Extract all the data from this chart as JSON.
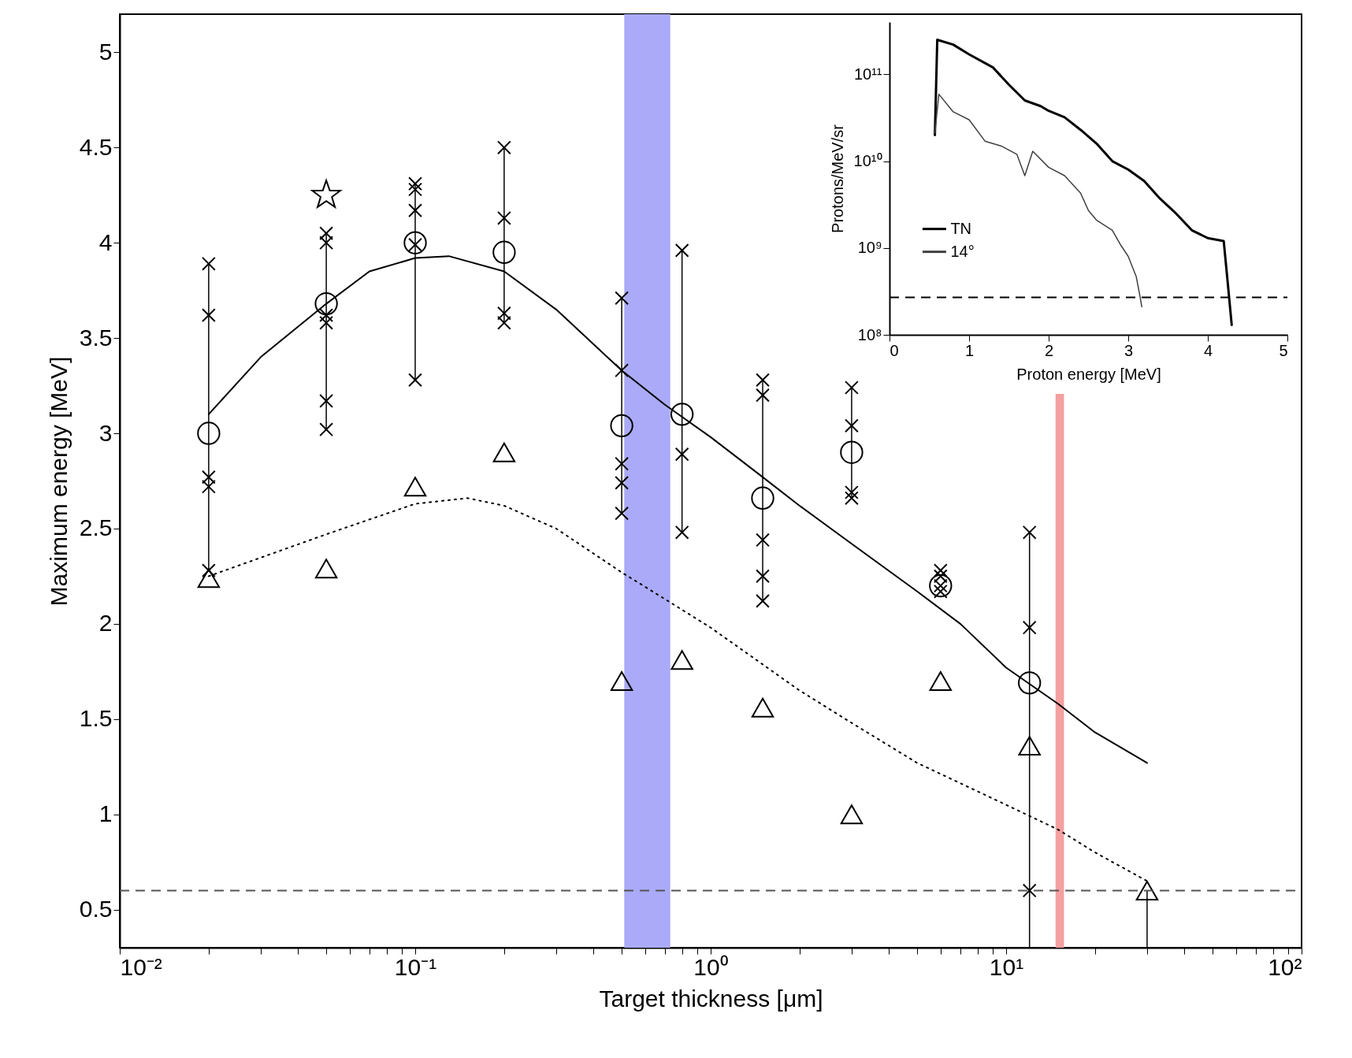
{
  "chart_data": [
    {
      "type": "scatter",
      "xlabel": "Target thickness [μm]",
      "ylabel": "Maximum energy [MeV]",
      "log": "x",
      "grid": false,
      "legend": false,
      "xlim": [
        0.01,
        100
      ],
      "ylim": [
        0.3,
        5.2
      ],
      "xticks": [
        {
          "value": 0.01,
          "label": "10⁻²"
        },
        {
          "value": 0.02,
          "label": null
        },
        {
          "value": 0.03,
          "label": null
        },
        {
          "value": 0.04,
          "label": null
        },
        {
          "value": 0.05,
          "label": null
        },
        {
          "value": 0.06,
          "label": null
        },
        {
          "value": 0.07,
          "label": null
        },
        {
          "value": 0.08,
          "label": null
        },
        {
          "value": 0.09,
          "label": null
        },
        {
          "value": 0.1,
          "label": "10⁻¹"
        },
        {
          "value": 0.2,
          "label": null
        },
        {
          "value": 0.3,
          "label": null
        },
        {
          "value": 0.4,
          "label": null
        },
        {
          "value": 0.5,
          "label": null
        },
        {
          "value": 0.6,
          "label": null
        },
        {
          "value": 0.7,
          "label": null
        },
        {
          "value": 0.8,
          "label": null
        },
        {
          "value": 0.9,
          "label": null
        },
        {
          "value": 1,
          "label": "10⁰"
        },
        {
          "value": 2,
          "label": null
        },
        {
          "value": 3,
          "label": null
        },
        {
          "value": 4,
          "label": null
        },
        {
          "value": 5,
          "label": null
        },
        {
          "value": 6,
          "label": null
        },
        {
          "value": 7,
          "label": null
        },
        {
          "value": 8,
          "label": null
        },
        {
          "value": 9,
          "label": null
        },
        {
          "value": 10,
          "label": "10¹"
        },
        {
          "value": 20,
          "label": null
        },
        {
          "value": 30,
          "label": null
        },
        {
          "value": 40,
          "label": null
        },
        {
          "value": 50,
          "label": null
        },
        {
          "value": 60,
          "label": null
        },
        {
          "value": 70,
          "label": null
        },
        {
          "value": 80,
          "label": null
        },
        {
          "value": 90,
          "label": null
        },
        {
          "value": 100,
          "label": "10²"
        }
      ],
      "yticks": [
        0.5,
        1,
        1.5,
        2,
        2.5,
        3,
        3.5,
        4,
        4.5,
        5
      ],
      "bands": [
        {
          "axis": "x",
          "from": 0.51,
          "to": 0.73,
          "color": "#aaaaf8"
        },
        {
          "axis": "x",
          "from": 14.7,
          "to": 15.7,
          "color": "#f4a0a0"
        }
      ],
      "ref_lines": [
        {
          "axis": "y",
          "value": 0.6,
          "color": "#555555",
          "line_style": "dashed"
        }
      ],
      "series": [
        {
          "type": "line",
          "color": "#000000",
          "marker": "none",
          "line_style": "solid",
          "x": [
            0.02,
            0.03,
            0.05,
            0.07,
            0.1,
            0.13,
            0.2,
            0.3,
            0.5,
            0.7,
            1,
            1.5,
            2,
            3,
            5,
            7,
            10,
            15,
            20,
            30
          ],
          "values": [
            3.1,
            3.4,
            3.68,
            3.85,
            3.92,
            3.93,
            3.85,
            3.65,
            3.33,
            3.15,
            2.98,
            2.77,
            2.62,
            2.42,
            2.17,
            2.0,
            1.77,
            1.58,
            1.43,
            1.27
          ]
        },
        {
          "type": "line",
          "color": "#000000",
          "marker": "none",
          "line_style": "dotted",
          "x": [
            0.02,
            0.05,
            0.1,
            0.15,
            0.2,
            0.3,
            0.5,
            0.7,
            1,
            2,
            3,
            5,
            10,
            15,
            20,
            30
          ],
          "values": [
            2.25,
            2.47,
            2.63,
            2.66,
            2.62,
            2.5,
            2.27,
            2.13,
            1.98,
            1.65,
            1.48,
            1.27,
            1.05,
            0.92,
            0.8,
            0.65
          ]
        },
        {
          "type": "scatter",
          "color": "#000000",
          "marker": "circle",
          "x": [
            0.02,
            0.05,
            0.1,
            0.2,
            0.5,
            0.8,
            1.5,
            3,
            6,
            12
          ],
          "values": [
            3.0,
            3.68,
            4.0,
            3.95,
            3.04,
            3.1,
            2.66,
            2.9,
            2.2,
            1.69
          ],
          "errors": [
            [
              2.28,
              3.89
            ],
            [
              3.02,
              4.05
            ],
            [
              3.28,
              4.31
            ],
            [
              3.58,
              4.5
            ],
            [
              2.58,
              3.71
            ],
            [
              2.48,
              3.96
            ],
            [
              2.12,
              3.28
            ],
            [
              2.66,
              3.24
            ],
            null,
            [
              0.3,
              2.48
            ]
          ]
        },
        {
          "type": "scatter",
          "color": "#000000",
          "marker": "triangle",
          "x": [
            0.02,
            0.05,
            0.1,
            0.2,
            0.5,
            0.8,
            1.5,
            3,
            6,
            12,
            30
          ],
          "values": [
            2.24,
            2.29,
            2.72,
            2.9,
            1.7,
            1.81,
            1.56,
            1.0,
            1.7,
            1.36,
            0.6
          ],
          "errors": [
            null,
            null,
            null,
            null,
            null,
            null,
            null,
            null,
            null,
            null,
            [
              0.3,
              0.6
            ]
          ]
        },
        {
          "type": "scatter",
          "color": "#000000",
          "marker": "star",
          "x": [
            0.05
          ],
          "values": [
            4.25
          ]
        },
        {
          "type": "scatter",
          "color": "#000000",
          "marker": "cross",
          "x": [
            0.02,
            0.02,
            0.02,
            0.02,
            0.02,
            0.05,
            0.05,
            0.05,
            0.05,
            0.05,
            0.05,
            0.1,
            0.1,
            0.1,
            0.1,
            0.1,
            0.2,
            0.2,
            0.2,
            0.2,
            0.5,
            0.5,
            0.5,
            0.5,
            0.5,
            0.8,
            0.8,
            0.8,
            1.5,
            1.5,
            1.5,
            1.5,
            1.5,
            3,
            3,
            3,
            3,
            6,
            6,
            6,
            6,
            12,
            12,
            12
          ],
          "values": [
            3.89,
            3.62,
            2.77,
            2.72,
            2.28,
            4.05,
            4.0,
            3.62,
            3.58,
            3.17,
            3.02,
            4.31,
            4.28,
            4.17,
            3.99,
            3.28,
            4.5,
            4.13,
            3.63,
            3.58,
            3.71,
            3.33,
            2.84,
            2.74,
            2.58,
            3.96,
            2.89,
            2.48,
            3.28,
            3.2,
            2.44,
            2.25,
            2.12,
            3.24,
            3.04,
            2.69,
            2.66,
            2.28,
            2.25,
            2.2,
            2.17,
            2.48,
            1.98,
            0.6
          ]
        }
      ]
    },
    {
      "type": "line",
      "xlabel": "Proton energy [MeV]",
      "ylabel": "Protons/MeV/sr",
      "log": "y",
      "grid": false,
      "legend": "bottom left",
      "xlim": [
        0,
        5
      ],
      "xticks": [
        0,
        1,
        2,
        3,
        4,
        5
      ],
      "ylim": [
        100000000.0,
        400000000000.0
      ],
      "yticks": [
        {
          "value": 100000000.0,
          "label": "10⁸"
        },
        {
          "value": 1000000000.0,
          "label": "10⁹"
        },
        {
          "value": 10000000000.0,
          "label": "10¹⁰"
        },
        {
          "value": 100000000000.0,
          "label": "10¹¹"
        }
      ],
      "ref_lines": [
        {
          "axis": "y",
          "value": 270000000.0,
          "color": "#000000",
          "line_style": "dashed"
        }
      ],
      "series": [
        {
          "name": "TN",
          "color": "#000000",
          "x": [
            0.57,
            0.6,
            0.8,
            1.0,
            1.3,
            1.5,
            1.7,
            1.9,
            2.0,
            2.2,
            2.4,
            2.6,
            2.8,
            3.0,
            3.2,
            3.4,
            3.6,
            3.8,
            4.0,
            4.2,
            4.25,
            4.3
          ],
          "values": [
            20000000000.0,
            250000000000.0,
            220000000000.0,
            170000000000.0,
            120000000000.0,
            76000000000.0,
            50000000000.0,
            43000000000.0,
            38000000000.0,
            32000000000.0,
            23000000000.0,
            16000000000.0,
            10000000000.0,
            8000000000.0,
            5900000000.0,
            3700000000.0,
            2500000000.0,
            1600000000.0,
            1300000000.0,
            1200000000.0,
            400000000.0,
            130000000.0
          ]
        },
        {
          "name": "14°",
          "color": "#404040",
          "x": [
            0.57,
            0.62,
            0.8,
            1.0,
            1.2,
            1.4,
            1.6,
            1.7,
            1.8,
            2.0,
            2.2,
            2.4,
            2.5,
            2.6,
            2.8,
            2.9,
            3.0,
            3.1,
            3.15,
            3.17
          ],
          "values": [
            21000000000.0,
            59000000000.0,
            37000000000.0,
            30000000000.0,
            17000000000.0,
            15000000000.0,
            12000000000.0,
            6800000000.0,
            13000000000.0,
            8500000000.0,
            6800000000.0,
            4300000000.0,
            2700000000.0,
            2100000000.0,
            1600000000.0,
            1100000000.0,
            800000000.0,
            470000000.0,
            270000000.0,
            210000000.0
          ]
        }
      ]
    }
  ]
}
